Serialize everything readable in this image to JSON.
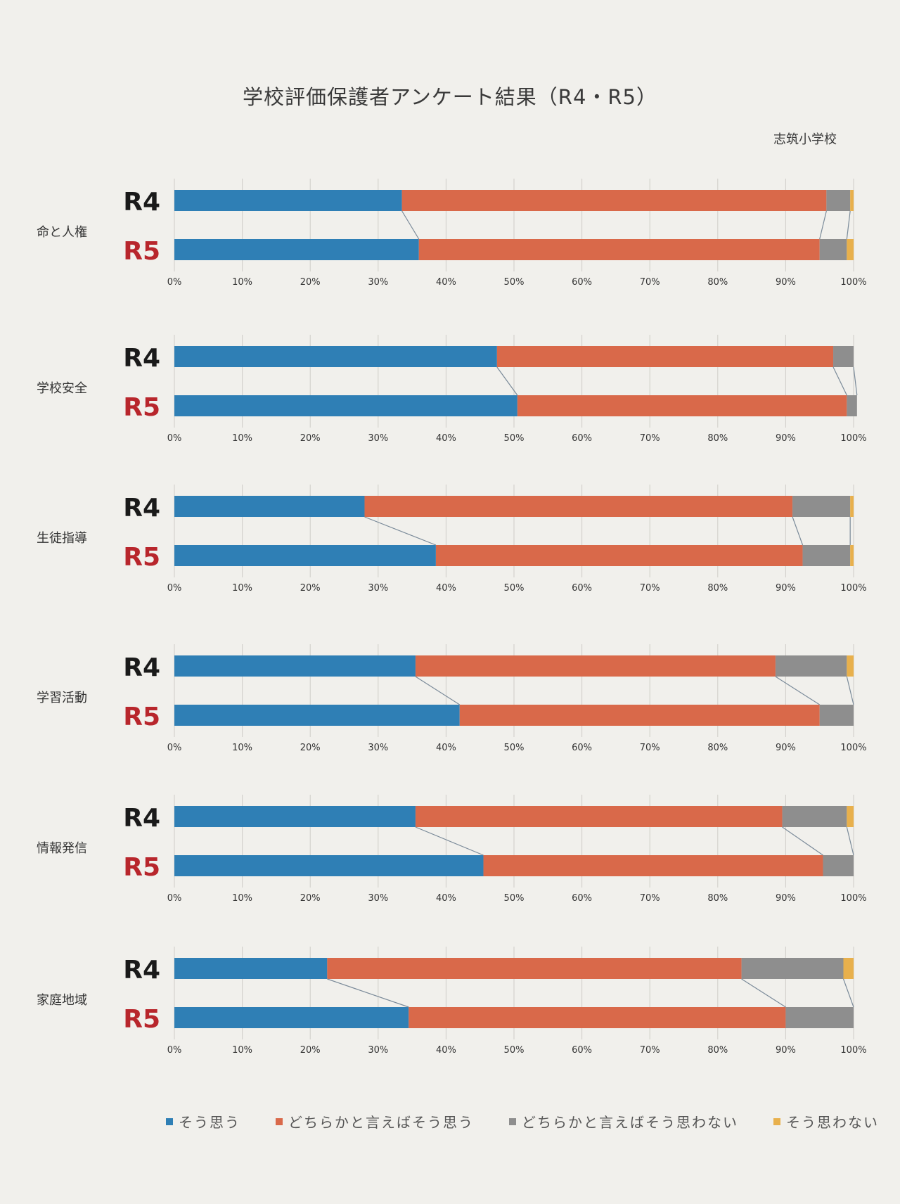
{
  "title": "学校評価保護者アンケート結果（R4・R5）",
  "school": "志筑小学校",
  "colors": {
    "agree": "#2f7fb5",
    "somewhat_agree": "#d9694a",
    "somewhat_disagree": "#8e8e8e",
    "disagree": "#e8b04c"
  },
  "chart_data": {
    "type": "bar",
    "orientation": "horizontal",
    "stacked": "percent",
    "xlim": [
      0,
      100
    ],
    "x_ticks": [
      "0%",
      "10%",
      "20%",
      "30%",
      "40%",
      "50%",
      "60%",
      "70%",
      "80%",
      "90%",
      "100%"
    ],
    "legend": {
      "position": "bottom",
      "entries": [
        "そう思う",
        "どちらかと言えばそう思う",
        "どちらかと言えばそう思わない",
        "そう思わない"
      ]
    },
    "groups": [
      {
        "category": "命と人権",
        "bars": [
          {
            "label": "R4",
            "values": [
              33.5,
              62.5,
              3.5,
              0.5
            ]
          },
          {
            "label": "R5",
            "values": [
              36,
              59,
              4,
              1
            ]
          }
        ]
      },
      {
        "category": "学校安全",
        "bars": [
          {
            "label": "R4",
            "values": [
              47.5,
              49.5,
              3,
              0
            ]
          },
          {
            "label": "R5",
            "values": [
              50.5,
              48.5,
              1.5,
              0
            ]
          }
        ]
      },
      {
        "category": "生徒指導",
        "bars": [
          {
            "label": "R4",
            "values": [
              28,
              63,
              8.5,
              0.5
            ]
          },
          {
            "label": "R5",
            "values": [
              38.5,
              54,
              7,
              0.5
            ]
          }
        ]
      },
      {
        "category": "学習活動",
        "bars": [
          {
            "label": "R4",
            "values": [
              35.5,
              53,
              10.5,
              1
            ]
          },
          {
            "label": "R5",
            "values": [
              42,
              53,
              5,
              0
            ]
          }
        ]
      },
      {
        "category": "情報発信",
        "bars": [
          {
            "label": "R4",
            "values": [
              35.5,
              54,
              9.5,
              1
            ]
          },
          {
            "label": "R5",
            "values": [
              45.5,
              50,
              4.5,
              0
            ]
          }
        ]
      },
      {
        "category": "家庭地域",
        "bars": [
          {
            "label": "R4",
            "values": [
              22.5,
              61,
              15,
              1.5
            ]
          },
          {
            "label": "R5",
            "values": [
              34.5,
              55.5,
              10,
              0
            ]
          }
        ]
      }
    ]
  }
}
